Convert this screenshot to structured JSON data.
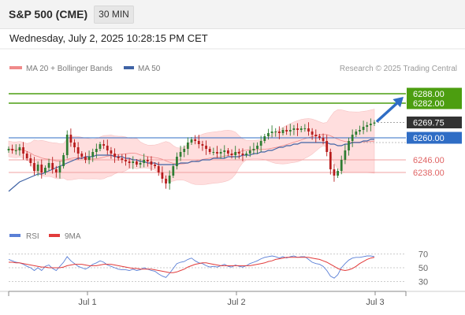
{
  "header": {
    "title": "S&P 500 (CME)",
    "timeframe": "30 MIN",
    "datetime": "Wednesday, July 2, 2025 10:28:15 PM CET"
  },
  "colors": {
    "resistance": "#4c9e10",
    "current": "#333333",
    "pivot": "#2f6dc5",
    "support": "#e06464",
    "band_fill": "#ffdede",
    "ma50": "#3f63a5",
    "up_candle": "#2e7d32",
    "down_candle": "#b71c1c",
    "rsi": "#5a7fd6",
    "rsi_ma": "#e23b3b"
  },
  "chart_data": [
    {
      "type": "candlestick",
      "legend": [
        {
          "name": "MA 20 + Bollinger Bands",
          "color": "#f08a8a"
        },
        {
          "name": "MA 50",
          "color": "#3f63a5"
        }
      ],
      "legend_placement": "top-left",
      "credit": "Research © 2025 Trading Central",
      "x_ticks": [
        "Jul 1",
        "Jul 2",
        "Jul 3"
      ],
      "ylim": [
        6205,
        6300
      ],
      "levels": [
        {
          "value": 6288.0,
          "label": "6288.00",
          "kind": "resistance"
        },
        {
          "value": 6282.0,
          "label": "6282.00",
          "kind": "resistance"
        },
        {
          "value": 6269.75,
          "label": "6269.75",
          "kind": "current"
        },
        {
          "value": 6260.0,
          "label": "6260.00",
          "kind": "pivot"
        },
        {
          "value": 6246.0,
          "label": "6246.00",
          "kind": "support"
        },
        {
          "value": 6238.0,
          "label": "6238.00",
          "kind": "support"
        }
      ],
      "close": [
        6253,
        6252,
        6252,
        6254,
        6250,
        6247,
        6244,
        6239,
        6243,
        6238,
        6241,
        6244,
        6240,
        6238,
        6242,
        6249,
        6262,
        6257,
        6254,
        6250,
        6248,
        6246,
        6248,
        6251,
        6253,
        6256,
        6255,
        6252,
        6250,
        6248,
        6247,
        6246,
        6245,
        6244,
        6245,
        6243,
        6244,
        6246,
        6245,
        6243,
        6242,
        6238,
        6234,
        6231,
        6236,
        6242,
        6248,
        6251,
        6253,
        6257,
        6259,
        6258,
        6256,
        6255,
        6253,
        6251,
        6251,
        6250,
        6251,
        6252,
        6250,
        6249,
        6251,
        6250,
        6249,
        6250,
        6252,
        6253,
        6255,
        6258,
        6261,
        6263,
        6264,
        6264,
        6263,
        6265,
        6264,
        6265,
        6266,
        6265,
        6266,
        6266,
        6264,
        6262,
        6261,
        6260,
        6258,
        6251,
        6240,
        6236,
        6239,
        6246,
        6252,
        6258,
        6262,
        6264,
        6265,
        6267,
        6268,
        6269,
        6269.75
      ],
      "ma50": [
        6226,
        6228,
        6230,
        6232,
        6233,
        6234,
        6235,
        6236,
        6237,
        6237,
        6238,
        6239,
        6240,
        6241,
        6242,
        6243,
        6244,
        6245,
        6246,
        6247,
        6247,
        6248,
        6248,
        6248,
        6249,
        6249,
        6249,
        6249,
        6249,
        6248,
        6248,
        6248,
        6247,
        6247,
        6246,
        6246,
        6245,
        6245,
        6244,
        6244,
        6244,
        6243,
        6243,
        6243,
        6243,
        6243,
        6243,
        6244,
        6244,
        6244,
        6245,
        6245,
        6245,
        6246,
        6246,
        6246,
        6247,
        6247,
        6247,
        6247,
        6248,
        6248,
        6248,
        6248,
        6249,
        6249,
        6249,
        6250,
        6250,
        6251,
        6251,
        6252,
        6252,
        6253,
        6254,
        6254,
        6255,
        6255,
        6256,
        6256,
        6257,
        6257,
        6257,
        6257,
        6257,
        6257,
        6257,
        6257,
        6256,
        6256,
        6255,
        6255,
        6256,
        6256,
        6257,
        6257,
        6257,
        6258,
        6258,
        6259,
        6259
      ],
      "rsi_panel": {
        "legend": [
          {
            "name": "RSI",
            "color": "#5a7fd6"
          },
          {
            "name": "9MA",
            "color": "#e23b3b"
          }
        ],
        "y_ticks": [
          "70",
          "50",
          "30"
        ],
        "ylim": [
          25,
          75
        ],
        "rsi": [
          62,
          60,
          58,
          57,
          55,
          52,
          50,
          46,
          50,
          46,
          52,
          54,
          49,
          46,
          52,
          58,
          66,
          60,
          56,
          52,
          50,
          48,
          51,
          55,
          57,
          60,
          58,
          54,
          52,
          50,
          48,
          47,
          47,
          46,
          48,
          46,
          47,
          50,
          48,
          46,
          45,
          41,
          38,
          36,
          42,
          49,
          56,
          58,
          59,
          62,
          64,
          60,
          57,
          56,
          53,
          51,
          52,
          51,
          53,
          55,
          52,
          51,
          54,
          52,
          51,
          53,
          56,
          58,
          60,
          63,
          65,
          66,
          67,
          66,
          64,
          66,
          64,
          66,
          67,
          65,
          66,
          66,
          62,
          58,
          56,
          55,
          52,
          46,
          38,
          35,
          40,
          50,
          56,
          61,
          64,
          65,
          65,
          66,
          67,
          67,
          66
        ],
        "rsi_ma": [
          58,
          58,
          57,
          57,
          56,
          55,
          54,
          53,
          52,
          51,
          51,
          50,
          50,
          50,
          50,
          51,
          53,
          54,
          55,
          55,
          55,
          54,
          53,
          53,
          53,
          54,
          55,
          55,
          55,
          54,
          53,
          52,
          51,
          50,
          49,
          49,
          48,
          48,
          48,
          48,
          47,
          46,
          45,
          44,
          43,
          43,
          44,
          46,
          48,
          51,
          53,
          55,
          56,
          57,
          57,
          56,
          55,
          54,
          53,
          53,
          53,
          53,
          53,
          53,
          53,
          53,
          53,
          54,
          55,
          56,
          57,
          59,
          60,
          62,
          63,
          64,
          65,
          65,
          65,
          65,
          65,
          65,
          65,
          64,
          63,
          62,
          60,
          58,
          55,
          52,
          49,
          47,
          46,
          47,
          49,
          52,
          56,
          59,
          62,
          64,
          65
        ]
      }
    }
  ]
}
